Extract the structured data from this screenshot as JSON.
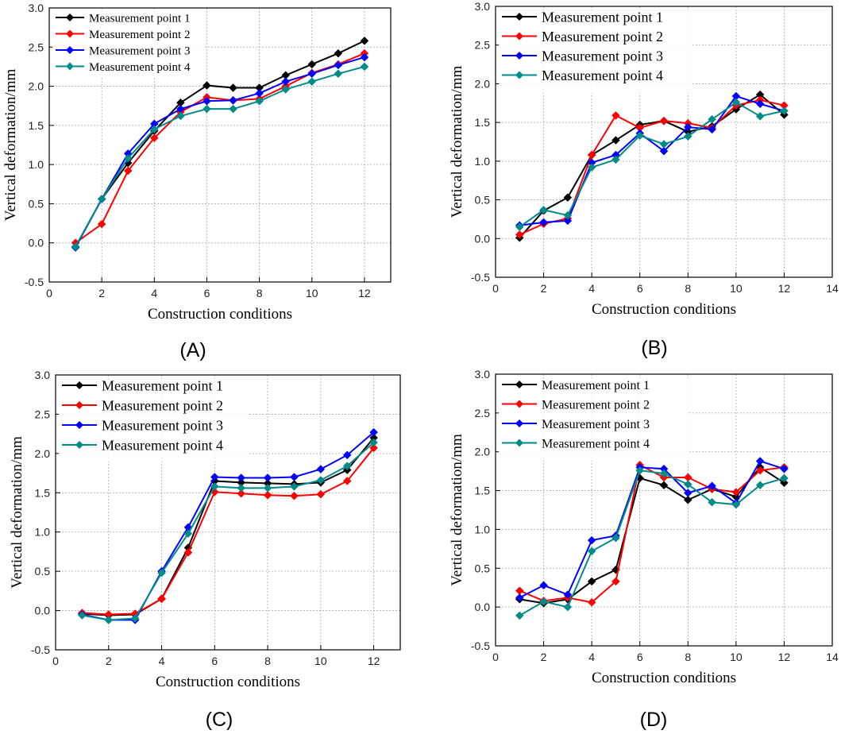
{
  "colors": {
    "series": [
      "#000000",
      "#ff0000",
      "#0000ff",
      "#008b8b"
    ]
  },
  "chart_data": [
    {
      "type": "line",
      "panel": "(A)",
      "xlabel": "Construction conditions",
      "ylabel": "Vertical deformation/mm",
      "xlim": [
        0,
        13
      ],
      "ylim": [
        -0.5,
        3.0
      ],
      "xticks": [
        "0",
        "2",
        "4",
        "6",
        "8",
        "10",
        "12"
      ],
      "yticks": [
        "-0.5",
        "0.0",
        "0.5",
        "1.0",
        "1.5",
        "2.0",
        "2.5",
        "3.0"
      ],
      "legend_position": "top-left",
      "x": [
        1,
        2,
        3,
        4,
        5,
        6,
        7,
        8,
        9,
        10,
        11,
        12
      ],
      "series": [
        {
          "name": "Measurement point 1",
          "values": [
            -0.05,
            0.56,
            1.02,
            1.43,
            1.79,
            2.01,
            1.98,
            1.98,
            2.14,
            2.28,
            2.42,
            2.58
          ]
        },
        {
          "name": "Measurement point 2",
          "values": [
            0.0,
            0.24,
            0.92,
            1.34,
            1.67,
            1.86,
            1.82,
            1.84,
            2.0,
            2.17,
            2.28,
            2.42
          ]
        },
        {
          "name": "Measurement point 3",
          "values": [
            -0.06,
            0.56,
            1.14,
            1.52,
            1.71,
            1.81,
            1.82,
            1.91,
            2.06,
            2.16,
            2.27,
            2.37
          ]
        },
        {
          "name": "Measurement point 4",
          "values": [
            -0.05,
            0.56,
            1.08,
            1.45,
            1.62,
            1.71,
            1.71,
            1.81,
            1.96,
            2.06,
            2.16,
            2.25
          ]
        }
      ]
    },
    {
      "type": "line",
      "panel": "(B)",
      "xlabel": "Construction conditions",
      "ylabel": "Vertical deformation/mm",
      "xlim": [
        0,
        14
      ],
      "ylim": [
        -0.5,
        3.0
      ],
      "xticks": [
        "0",
        "2",
        "4",
        "6",
        "8",
        "10",
        "12",
        "14"
      ],
      "yticks": [
        "-0.5",
        "0.0",
        "0.5",
        "1.0",
        "1.5",
        "2.0",
        "2.5",
        "3.0"
      ],
      "legend_position": "top-left",
      "x": [
        1,
        2,
        3,
        4,
        5,
        6,
        7,
        8,
        9,
        10,
        11,
        12
      ],
      "series": [
        {
          "name": "Measurement point 1",
          "values": [
            0.01,
            0.36,
            0.53,
            1.08,
            1.27,
            1.47,
            1.52,
            1.38,
            1.45,
            1.67,
            1.86,
            1.6
          ]
        },
        {
          "name": "Measurement point 2",
          "values": [
            0.05,
            0.19,
            0.26,
            1.08,
            1.59,
            1.43,
            1.52,
            1.49,
            1.43,
            1.72,
            1.79,
            1.72
          ]
        },
        {
          "name": "Measurement point 3",
          "values": [
            0.17,
            0.21,
            0.23,
            0.98,
            1.08,
            1.36,
            1.13,
            1.44,
            1.41,
            1.84,
            1.74,
            1.65
          ]
        },
        {
          "name": "Measurement point 4",
          "values": [
            0.15,
            0.37,
            0.3,
            0.92,
            1.02,
            1.33,
            1.22,
            1.32,
            1.54,
            1.76,
            1.58,
            1.65
          ]
        }
      ]
    },
    {
      "type": "line",
      "panel": "(C)",
      "xlabel": "Construction conditions",
      "ylabel": "Vertical deformation/mm",
      "xlim": [
        0,
        13
      ],
      "ylim": [
        -0.5,
        3.0
      ],
      "xticks": [
        "0",
        "2",
        "4",
        "6",
        "8",
        "10",
        "12"
      ],
      "yticks": [
        "-0.5",
        "0.0",
        "0.5",
        "1.0",
        "1.5",
        "2.0",
        "2.5",
        "3.0"
      ],
      "legend_position": "top-left",
      "x": [
        1,
        2,
        3,
        4,
        5,
        6,
        7,
        8,
        9,
        10,
        11,
        12
      ],
      "series": [
        {
          "name": "Measurement point 1",
          "values": [
            -0.04,
            -0.06,
            -0.05,
            0.15,
            0.8,
            1.65,
            1.63,
            1.62,
            1.61,
            1.63,
            1.79,
            2.2
          ]
        },
        {
          "name": "Measurement point 2",
          "values": [
            -0.03,
            -0.05,
            -0.04,
            0.15,
            0.74,
            1.51,
            1.49,
            1.47,
            1.46,
            1.48,
            1.65,
            2.07
          ]
        },
        {
          "name": "Measurement point 3",
          "values": [
            -0.05,
            -0.12,
            -0.12,
            0.5,
            1.06,
            1.7,
            1.69,
            1.69,
            1.7,
            1.8,
            1.98,
            2.27
          ]
        },
        {
          "name": "Measurement point 4",
          "values": [
            -0.06,
            -0.12,
            -0.1,
            0.48,
            0.98,
            1.58,
            1.56,
            1.56,
            1.58,
            1.66,
            1.84,
            2.14
          ]
        }
      ]
    },
    {
      "type": "line",
      "panel": "(D)",
      "xlabel": "Construction conditions",
      "ylabel": "Vertical deformation/mm",
      "xlim": [
        0,
        14
      ],
      "ylim": [
        -0.5,
        3.0
      ],
      "xticks": [
        "0",
        "2",
        "4",
        "6",
        "8",
        "10",
        "12",
        "14"
      ],
      "yticks": [
        "-0.5",
        "0.0",
        "0.5",
        "1.0",
        "1.5",
        "2.0",
        "2.5",
        "3.0"
      ],
      "legend_position": "top-left",
      "x": [
        1,
        2,
        3,
        4,
        5,
        6,
        7,
        8,
        9,
        10,
        11,
        12
      ],
      "series": [
        {
          "name": "Measurement point 1",
          "values": [
            0.1,
            0.05,
            0.1,
            0.33,
            0.48,
            1.66,
            1.57,
            1.38,
            1.52,
            1.42,
            1.8,
            1.6
          ]
        },
        {
          "name": "Measurement point 2",
          "values": [
            0.21,
            0.08,
            0.12,
            0.06,
            0.33,
            1.83,
            1.67,
            1.67,
            1.52,
            1.48,
            1.76,
            1.8
          ]
        },
        {
          "name": "Measurement point 3",
          "values": [
            0.12,
            0.28,
            0.16,
            0.86,
            0.92,
            1.8,
            1.78,
            1.47,
            1.56,
            1.34,
            1.88,
            1.78
          ]
        },
        {
          "name": "Measurement point 4",
          "values": [
            -0.11,
            0.07,
            0.0,
            0.72,
            0.89,
            1.76,
            1.72,
            1.58,
            1.35,
            1.32,
            1.57,
            1.66
          ]
        }
      ]
    }
  ]
}
